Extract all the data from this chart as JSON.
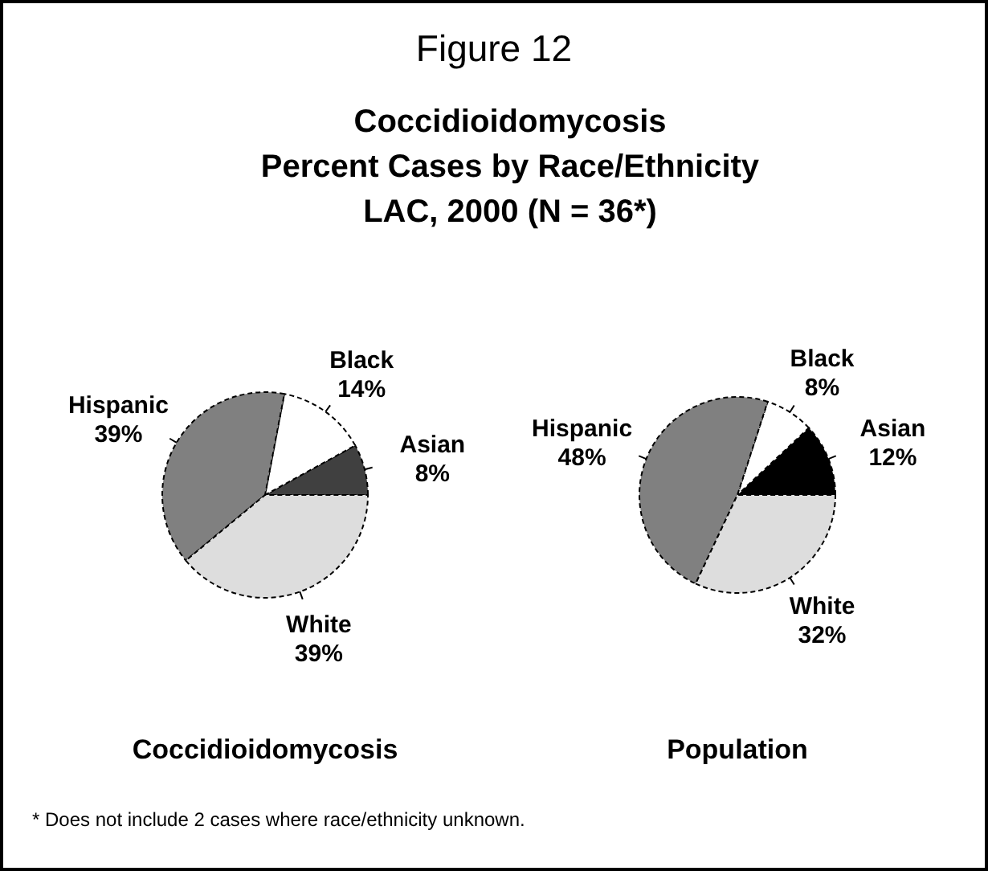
{
  "chart_data": [
    {
      "type": "pie",
      "title": "Figure 12",
      "subtitle": "Coccidioidomycosis\nPercent Cases by Race/Ethnicity\nLAC, 2000  (N = 36*)",
      "xlabel": "Coccidioidomycosis",
      "categories": [
        "Asian",
        "Black",
        "Hispanic",
        "White"
      ],
      "values": [
        8,
        14,
        39,
        39
      ],
      "colors": [
        "#404040",
        "#ffffff",
        "#808080",
        "#dddddd"
      ],
      "value_labels": [
        "8%",
        "14%",
        "39%",
        "39%"
      ],
      "annotations": [
        "* Does not include 2 cases where race/ethnicity unknown."
      ]
    },
    {
      "type": "pie",
      "xlabel": "Population",
      "categories": [
        "Asian",
        "Black",
        "Hispanic",
        "White"
      ],
      "values": [
        12,
        8,
        48,
        32
      ],
      "colors": [
        "#000000",
        "#ffffff",
        "#808080",
        "#dddddd"
      ],
      "value_labels": [
        "12%",
        "8%",
        "48%",
        "32%"
      ]
    }
  ]
}
